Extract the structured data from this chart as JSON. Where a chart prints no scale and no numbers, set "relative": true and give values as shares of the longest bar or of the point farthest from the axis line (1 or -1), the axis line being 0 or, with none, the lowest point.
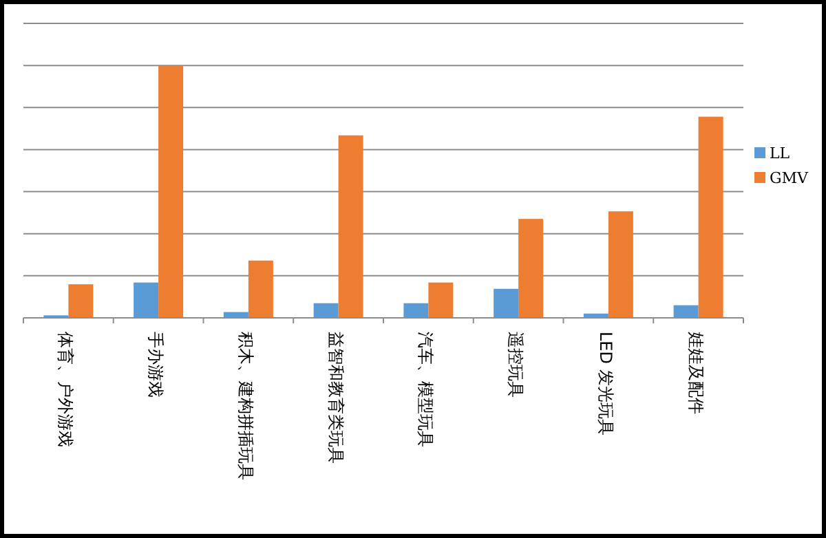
{
  "chart_data": {
    "type": "bar",
    "relative": true,
    "grid": "y",
    "legend": "right",
    "categories": [
      "体育、户外游戏",
      "手办游戏",
      "积木、建构拼插玩具",
      "益智和教育类玩具",
      "汽车、模型玩具",
      "遥控玩具",
      "LED 发光玩具",
      "娃娃及配件"
    ],
    "series": [
      {
        "name": "LL",
        "color": "#5b9bd5",
        "values": [
          0.01,
          0.14,
          0.023,
          0.058,
          0.058,
          0.115,
          0.017,
          0.05
        ]
      },
      {
        "name": "GMV",
        "color": "#ed7d31",
        "values": [
          0.133,
          1,
          0.227,
          0.723,
          0.14,
          0.392,
          0.422,
          0.797
        ]
      }
    ]
  }
}
